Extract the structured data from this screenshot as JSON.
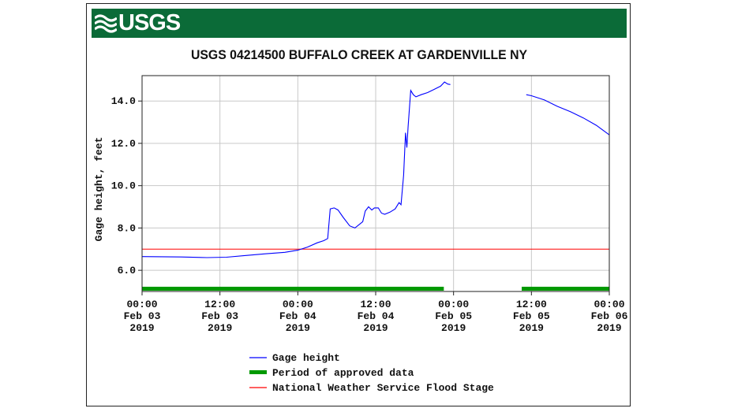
{
  "banner": {
    "logo_text": "USGS",
    "color": "#0b6b38"
  },
  "chart_data": {
    "type": "line",
    "title": "USGS 04214500 BUFFALO CREEK AT GARDENVILLE NY",
    "ylabel": "Gage height, feet",
    "xlabel": "",
    "x_unit": "hours from 00:00 Feb 03 2019",
    "xlim": [
      0,
      72
    ],
    "ylim": [
      5.0,
      15.2
    ],
    "yticks": [
      {
        "value": 6.0,
        "label": "6.0"
      },
      {
        "value": 8.0,
        "label": "8.0"
      },
      {
        "value": 10.0,
        "label": "10.0"
      },
      {
        "value": 12.0,
        "label": "12.0"
      },
      {
        "value": 14.0,
        "label": "14.0"
      }
    ],
    "xticks": [
      {
        "value": 0,
        "time": "00:00",
        "date": "Feb 03",
        "year": "2019"
      },
      {
        "value": 12,
        "time": "12:00",
        "date": "Feb 03",
        "year": "2019"
      },
      {
        "value": 24,
        "time": "00:00",
        "date": "Feb 04",
        "year": "2019"
      },
      {
        "value": 36,
        "time": "12:00",
        "date": "Feb 04",
        "year": "2019"
      },
      {
        "value": 48,
        "time": "00:00",
        "date": "Feb 05",
        "year": "2019"
      },
      {
        "value": 60,
        "time": "12:00",
        "date": "Feb 05",
        "year": "2019"
      },
      {
        "value": 72,
        "time": "00:00",
        "date": "Feb 06",
        "year": "2019"
      }
    ],
    "grid": true,
    "series": [
      {
        "name": "Gage height",
        "color": "#0000ff",
        "segments": [
          [
            [
              0,
              6.65
            ],
            [
              6,
              6.63
            ],
            [
              10,
              6.6
            ],
            [
              13,
              6.62
            ],
            [
              16,
              6.7
            ],
            [
              19,
              6.78
            ],
            [
              22,
              6.85
            ],
            [
              24,
              6.95
            ],
            [
              25.5,
              7.1
            ],
            [
              27,
              7.3
            ],
            [
              28,
              7.4
            ],
            [
              28.6,
              7.5
            ],
            [
              29,
              8.9
            ],
            [
              29.6,
              8.95
            ],
            [
              30.2,
              8.85
            ],
            [
              31,
              8.5
            ],
            [
              32,
              8.1
            ],
            [
              32.8,
              8.0
            ],
            [
              33.4,
              8.15
            ],
            [
              34,
              8.3
            ],
            [
              34.4,
              8.8
            ],
            [
              34.9,
              9.0
            ],
            [
              35.4,
              8.85
            ],
            [
              35.8,
              8.95
            ],
            [
              36.4,
              8.95
            ],
            [
              36.9,
              8.7
            ],
            [
              37.4,
              8.65
            ],
            [
              38.2,
              8.75
            ],
            [
              39,
              8.9
            ],
            [
              39.6,
              9.2
            ],
            [
              39.9,
              9.1
            ],
            [
              40.3,
              10.5
            ],
            [
              40.6,
              12.5
            ],
            [
              40.8,
              11.8
            ],
            [
              41,
              12.8
            ],
            [
              41.4,
              14.5
            ],
            [
              41.8,
              14.3
            ],
            [
              42.2,
              14.2
            ],
            [
              43,
              14.3
            ],
            [
              44,
              14.4
            ],
            [
              45,
              14.55
            ],
            [
              46,
              14.7
            ],
            [
              46.6,
              14.9
            ],
            [
              47.1,
              14.8
            ],
            [
              47.5,
              14.78
            ]
          ],
          [
            [
              59.2,
              14.3
            ],
            [
              60,
              14.25
            ],
            [
              62,
              14.05
            ],
            [
              64,
              13.75
            ],
            [
              66,
              13.5
            ],
            [
              68,
              13.2
            ],
            [
              70,
              12.85
            ],
            [
              72,
              12.4
            ]
          ]
        ]
      }
    ],
    "reference_lines": [
      {
        "name": "National Weather Service Flood Stage",
        "value": 7.0,
        "color": "#ff0000"
      }
    ],
    "approved_periods": {
      "name": "Period of approved data",
      "color": "#009900",
      "ranges": [
        [
          0,
          46.5
        ],
        [
          58.5,
          72
        ]
      ]
    },
    "legend": {
      "placement": "bottom",
      "items": [
        {
          "label": "Gage height",
          "color": "#0000ff",
          "kind": "line"
        },
        {
          "label": "Period of approved data",
          "color": "#009900",
          "kind": "bar"
        },
        {
          "label": "National Weather Service Flood Stage",
          "color": "#ff0000",
          "kind": "line"
        }
      ]
    }
  }
}
